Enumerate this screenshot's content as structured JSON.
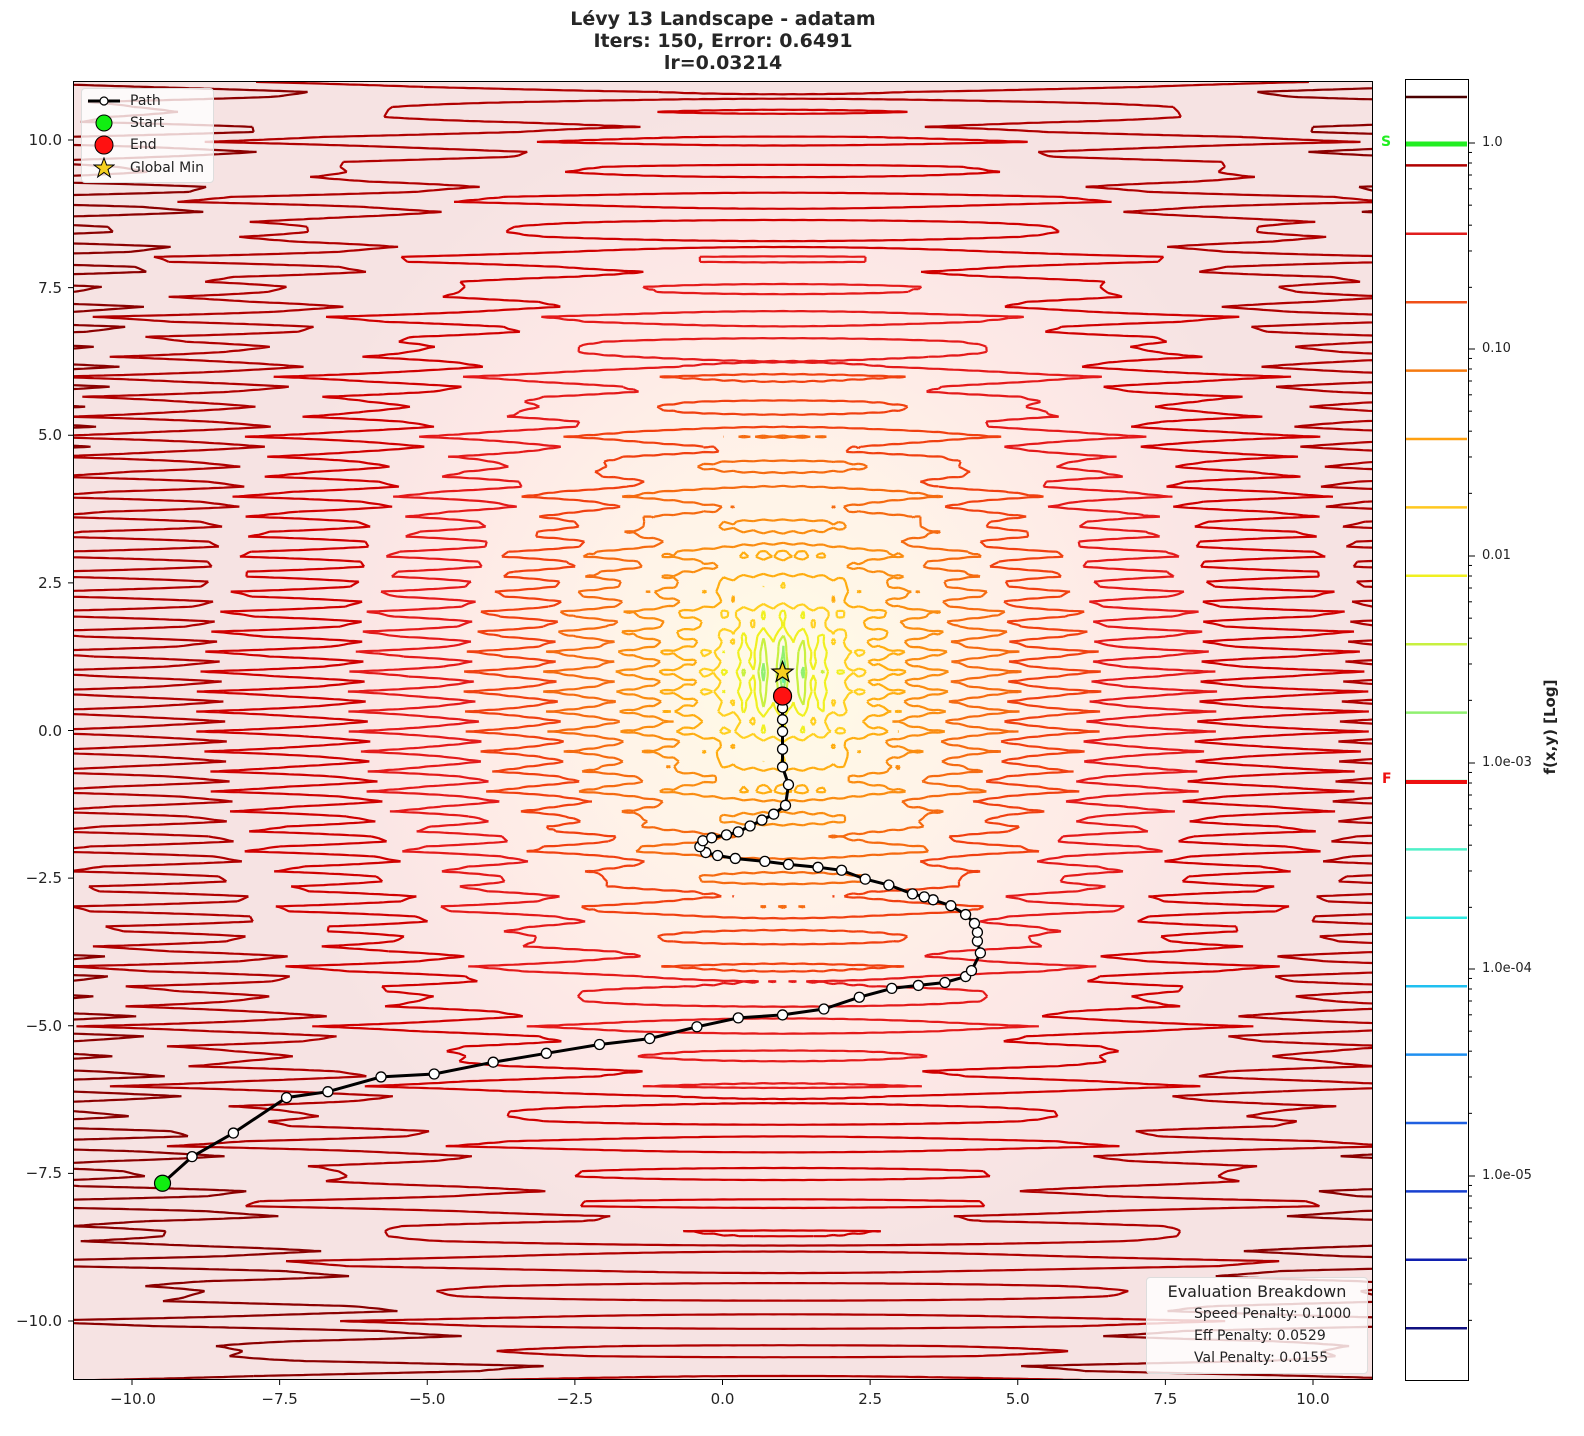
{
  "title": {
    "line1": "Lévy 13 Landscape - adatam",
    "line2": "Iters: 150, Error: 0.6491",
    "line3": "lr=0.03214"
  },
  "legend": {
    "items": [
      {
        "label": "Path",
        "marker": "line-with-white-circle",
        "color": "#000000"
      },
      {
        "label": "Start",
        "marker": "circle",
        "color": "#22e022"
      },
      {
        "label": "End",
        "marker": "circle",
        "color": "#ff1a1a"
      },
      {
        "label": "Global Min",
        "marker": "star",
        "color": "#f5d020"
      }
    ]
  },
  "evaluation": {
    "title": "Evaluation Breakdown",
    "speed_penalty": "Speed Penalty: 0.1000",
    "eff_penalty": "Eff Penalty: 0.0529",
    "val_penalty": "Val Penalty: 0.0155"
  },
  "axes": {
    "x_ticks": [
      "−10.0",
      "−7.5",
      "−5.0",
      "−2.5",
      "0.0",
      "2.5",
      "5.0",
      "7.5",
      "10.0"
    ],
    "y_ticks": [
      "10.0",
      "7.5",
      "5.0",
      "2.5",
      "0.0",
      "−2.5",
      "−5.0",
      "−7.5",
      "−10.0"
    ]
  },
  "colorbar": {
    "label": "f(x,y) [Log]",
    "tick_labels": [
      "1.0",
      "0.10",
      "0.01",
      "1.0e-03",
      "1.0e-04",
      "1.0e-05"
    ],
    "start_marker": "S",
    "final_marker": "F",
    "start_color": "#22ee22",
    "final_color": "#ee1111"
  },
  "chart_data": {
    "type": "line",
    "title": "Lévy 13 Landscape - adatam\nIters: 150, Error: 0.6491\nlr=0.03214",
    "xlabel": "",
    "ylabel": "",
    "xlim": [
      -11,
      11
    ],
    "ylim": [
      -11,
      11
    ],
    "grid": false,
    "legend_position": "upper left",
    "background": "log-scaled contour plot of Lévy N.13 function, contour levels colored from dark red (high) through orange, yellow, green, cyan to dark blue (low)",
    "colorbar": {
      "label": "f(x,y) [Log]",
      "scale": "log",
      "range": [
        5e-06,
        2.0
      ],
      "ticks": [
        1.0,
        0.1,
        0.01,
        0.001,
        0.0001,
        1e-05
      ],
      "start_value_marker": 1.0,
      "final_value_marker": 0.00085
    },
    "series": [
      {
        "name": "Path",
        "x": [
          -9.5,
          -9.0,
          -8.3,
          -7.4,
          -6.7,
          -5.8,
          -4.9,
          -3.9,
          -3.0,
          -2.1,
          -1.25,
          -0.45,
          0.25,
          1.0,
          1.7,
          2.3,
          2.85,
          3.3,
          3.75,
          4.1,
          4.2,
          4.35,
          4.3,
          4.3,
          4.25,
          4.1,
          3.85,
          3.55,
          3.4,
          3.2,
          2.8,
          2.4,
          2.0,
          1.6,
          1.1,
          0.7,
          0.2,
          -0.1,
          -0.3,
          -0.4,
          -0.35,
          -0.2,
          0.05,
          0.25,
          0.45,
          0.65,
          0.85,
          1.05,
          1.1,
          1.0,
          1.0,
          1.0,
          1.0,
          1.0,
          1.0
        ],
        "y": [
          -7.65,
          -7.2,
          -6.8,
          -6.2,
          -6.1,
          -5.85,
          -5.8,
          -5.6,
          -5.45,
          -5.3,
          -5.2,
          -5.0,
          -4.85,
          -4.8,
          -4.7,
          -4.5,
          -4.35,
          -4.3,
          -4.25,
          -4.15,
          -4.05,
          -3.75,
          -3.55,
          -3.4,
          -3.25,
          -3.1,
          -2.95,
          -2.85,
          -2.8,
          -2.75,
          -2.6,
          -2.5,
          -2.35,
          -2.3,
          -2.25,
          -2.2,
          -2.15,
          -2.1,
          -2.05,
          -1.95,
          -1.85,
          -1.8,
          -1.75,
          -1.7,
          -1.6,
          -1.5,
          -1.4,
          -1.25,
          -0.9,
          -0.6,
          -0.3,
          0.0,
          0.2,
          0.4,
          0.6
        ]
      },
      {
        "name": "Start",
        "x": [
          -9.5
        ],
        "y": [
          -7.65
        ]
      },
      {
        "name": "End",
        "x": [
          1.0
        ],
        "y": [
          0.6
        ]
      },
      {
        "name": "Global Min",
        "x": [
          1.0
        ],
        "y": [
          1.0
        ]
      }
    ],
    "annotations": [
      {
        "text": "Evaluation Breakdown",
        "position": "lower right"
      },
      {
        "text": "Speed Penalty: 0.1000"
      },
      {
        "text": "Eff Penalty: 0.0529"
      },
      {
        "text": "Val Penalty: 0.0155"
      }
    ]
  }
}
